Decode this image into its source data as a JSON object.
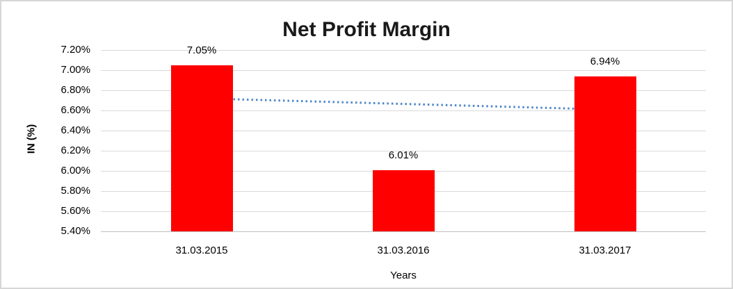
{
  "chart_data": {
    "type": "bar",
    "title": "Net Profit Margin",
    "xlabel": "Years",
    "ylabel": "IN (%)",
    "categories": [
      "31.03.2015",
      "31.03.2016",
      "31.03.2017"
    ],
    "values": [
      7.05,
      6.01,
      6.94
    ],
    "data_labels": [
      "7.05%",
      "6.01%",
      "6.94%"
    ],
    "ylim": [
      5.4,
      7.2
    ],
    "ytick_step": 0.2,
    "ytick_labels": [
      "7.20%",
      "7.00%",
      "6.80%",
      "6.60%",
      "6.40%",
      "6.20%",
      "6.00%",
      "5.80%",
      "5.60%",
      "5.40%"
    ],
    "grid": true,
    "legend": false,
    "bar_color": "#ff0000",
    "trendline": {
      "type": "linear",
      "style": "dotted",
      "color": "#4e87c8",
      "start_value": 6.72,
      "end_value": 6.61
    }
  }
}
